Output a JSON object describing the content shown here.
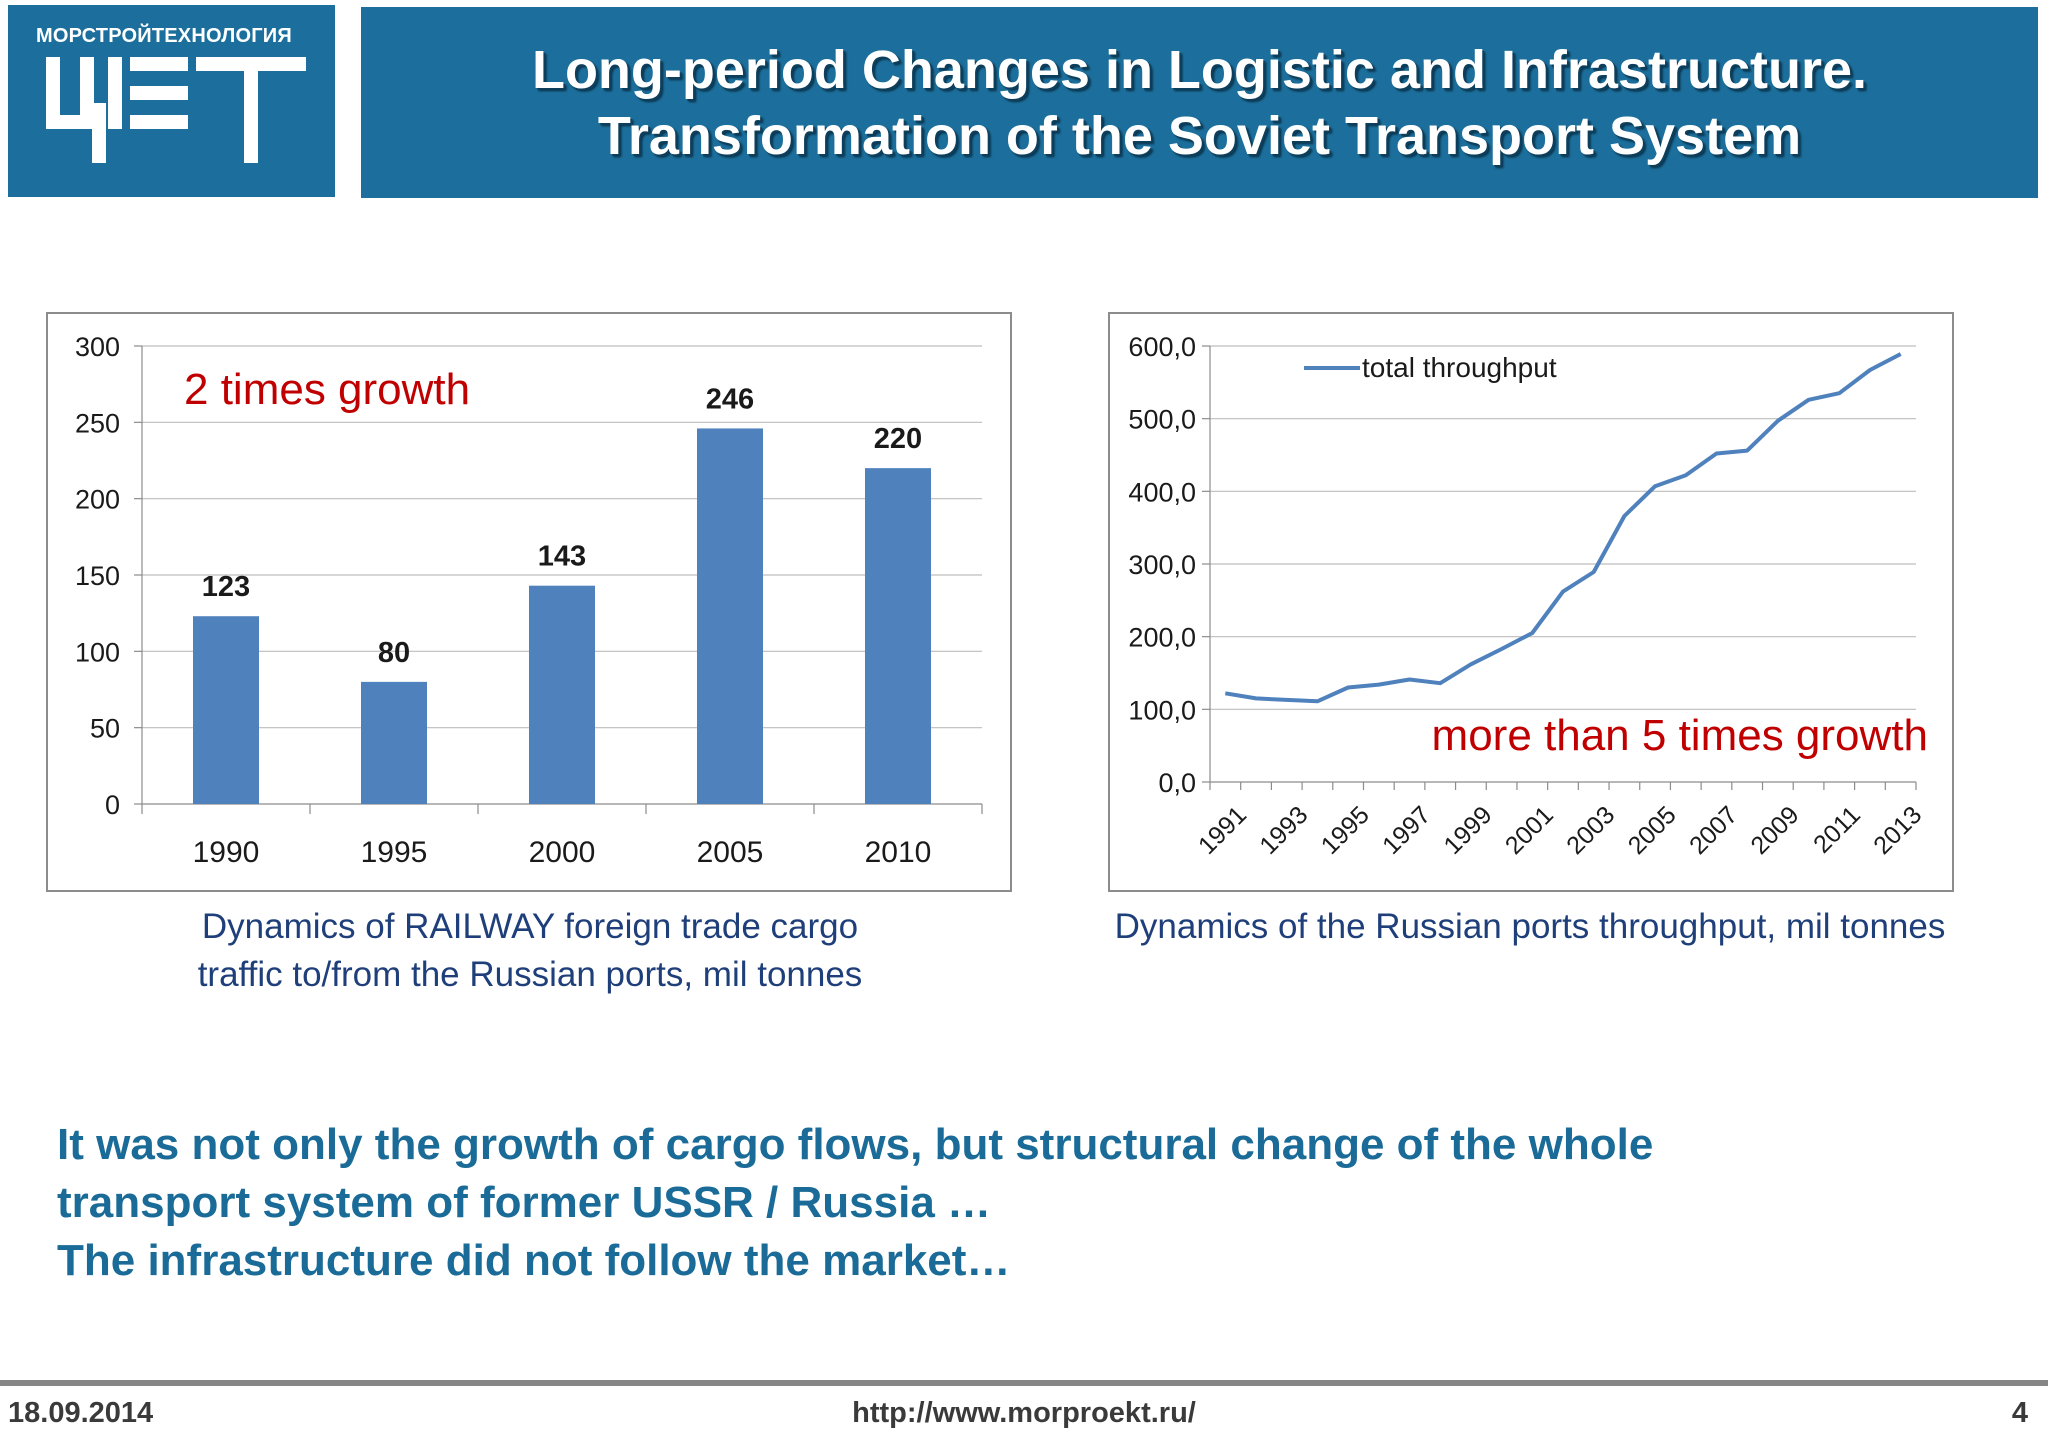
{
  "header": {
    "logo_caption": "МОРСТРОЙТЕХНОЛОГИЯ",
    "title_lines": [
      "Long-period Changes in Logistic and Infrastructure.",
      "Transformation of the Soviet Transport System"
    ]
  },
  "colors": {
    "brand": "#1c6f9c",
    "series": "#4f81bd",
    "annotation": "#c00000",
    "caption": "#1f3f7a",
    "conclusion": "#1a6b97"
  },
  "chart_data": [
    {
      "type": "bar",
      "categories": [
        "1990",
        "1995",
        "2000",
        "2005",
        "2010"
      ],
      "values": [
        123,
        80,
        143,
        246,
        220
      ],
      "data_labels": [
        "123",
        "80",
        "143",
        "246",
        "220"
      ],
      "ylim": [
        0,
        300
      ],
      "y_ticks": [
        "0",
        "50",
        "100",
        "150",
        "200",
        "250",
        "300"
      ],
      "annotation": "2 times growth",
      "grid": true,
      "caption_lines": [
        "Dynamics of RAILWAY foreign trade cargo",
        "traffic to/from the Russian ports, mil tonnes"
      ]
    },
    {
      "type": "line",
      "x": [
        1991,
        1992,
        1993,
        1994,
        1995,
        1996,
        1997,
        1998,
        1999,
        2000,
        2001,
        2002,
        2003,
        2004,
        2005,
        2006,
        2007,
        2008,
        2009,
        2010,
        2011,
        2012,
        2013
      ],
      "x_tick_labels": [
        "1991",
        "1993",
        "1995",
        "1997",
        "1999",
        "2001",
        "2003",
        "2005",
        "2007",
        "2009",
        "2011",
        "2013"
      ],
      "series": [
        {
          "name": "total  throughput",
          "values": [
            122,
            115,
            113,
            111,
            130,
            134,
            141,
            136,
            162,
            183,
            205,
            262,
            289,
            366,
            407,
            422,
            452,
            456,
            497,
            526,
            535,
            567,
            589
          ]
        }
      ],
      "ylim": [
        0,
        600
      ],
      "y_ticks": [
        "0,0",
        "100,0",
        "200,0",
        "300,0",
        "400,0",
        "500,0",
        "600,0"
      ],
      "annotation": "more than 5 times growth",
      "legend": "top-left",
      "grid": true,
      "caption_lines": [
        "Dynamics of the Russian ports throughput, mil tonnes"
      ]
    }
  ],
  "conclusion_lines": [
    "It was not only the growth of cargo flows, but structural change of the whole",
    "transport system of former USSR /  Russia …",
    "The infrastructure did not follow the market…"
  ],
  "footer": {
    "date": "18.09.2014",
    "url": "http://www.morproekt.ru/",
    "page": "4"
  }
}
